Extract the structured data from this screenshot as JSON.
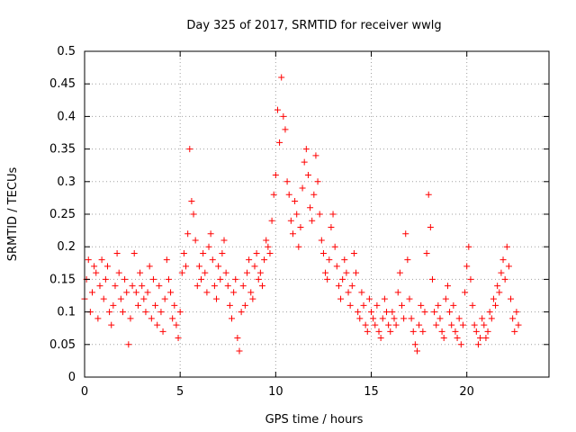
{
  "chart_data": {
    "type": "scatter",
    "title": "Day 325 of 2017, SRMTID for receiver wwlg",
    "xlabel": "GPS time / hours",
    "ylabel": "SRMTID / TECUs",
    "xlim": [
      0,
      24.3
    ],
    "ylim": [
      0,
      0.5
    ],
    "xticks": [
      "0",
      "5",
      "10",
      "15",
      "20"
    ],
    "xtick_values": [
      0,
      5,
      10,
      15,
      20
    ],
    "yticks": [
      "0",
      "0.05",
      "0.1",
      "0.15",
      "0.2",
      "0.25",
      "0.3",
      "0.35",
      "0.4",
      "0.45",
      "0.5"
    ],
    "ytick_values": [
      0,
      0.05,
      0.1,
      0.15,
      0.2,
      0.25,
      0.3,
      0.35,
      0.4,
      0.45,
      0.5
    ],
    "grid": true,
    "marker": "+",
    "color": "#ff0000",
    "series": [
      {
        "name": "SRMTID",
        "x": [
          0.0,
          0.1,
          0.2,
          0.3,
          0.4,
          0.5,
          0.6,
          0.7,
          0.8,
          0.9,
          1.0,
          1.1,
          1.2,
          1.3,
          1.4,
          1.5,
          1.6,
          1.7,
          1.8,
          1.9,
          2.0,
          2.1,
          2.2,
          2.3,
          2.4,
          2.5,
          2.6,
          2.7,
          2.8,
          2.9,
          3.0,
          3.1,
          3.2,
          3.3,
          3.4,
          3.5,
          3.6,
          3.7,
          3.8,
          3.9,
          4.0,
          4.1,
          4.2,
          4.3,
          4.4,
          4.5,
          4.6,
          4.7,
          4.8,
          4.9,
          5.0,
          5.1,
          5.2,
          5.3,
          5.4,
          5.5,
          5.6,
          5.7,
          5.8,
          5.9,
          6.0,
          6.1,
          6.2,
          6.3,
          6.4,
          6.5,
          6.6,
          6.7,
          6.8,
          6.9,
          7.0,
          7.1,
          7.2,
          7.3,
          7.4,
          7.5,
          7.6,
          7.7,
          7.8,
          7.9,
          8.0,
          8.1,
          8.2,
          8.3,
          8.4,
          8.5,
          8.6,
          8.7,
          8.8,
          8.9,
          9.0,
          9.1,
          9.2,
          9.3,
          9.4,
          9.5,
          9.6,
          9.7,
          9.8,
          9.9,
          10.0,
          10.1,
          10.2,
          10.3,
          10.4,
          10.5,
          10.6,
          10.7,
          10.8,
          10.9,
          11.0,
          11.1,
          11.2,
          11.3,
          11.4,
          11.5,
          11.6,
          11.7,
          11.8,
          11.9,
          12.0,
          12.1,
          12.2,
          12.3,
          12.4,
          12.5,
          12.6,
          12.7,
          12.8,
          12.9,
          13.0,
          13.1,
          13.2,
          13.3,
          13.4,
          13.5,
          13.6,
          13.7,
          13.8,
          13.9,
          14.0,
          14.1,
          14.2,
          14.3,
          14.4,
          14.5,
          14.6,
          14.7,
          14.8,
          14.9,
          15.0,
          15.1,
          15.2,
          15.3,
          15.4,
          15.5,
          15.6,
          15.7,
          15.8,
          15.9,
          16.0,
          16.1,
          16.2,
          16.3,
          16.4,
          16.5,
          16.6,
          16.7,
          16.8,
          16.9,
          17.0,
          17.1,
          17.2,
          17.3,
          17.4,
          17.5,
          17.6,
          17.7,
          17.8,
          17.9,
          18.0,
          18.1,
          18.2,
          18.3,
          18.4,
          18.5,
          18.6,
          18.7,
          18.8,
          18.9,
          19.0,
          19.1,
          19.2,
          19.3,
          19.4,
          19.5,
          19.6,
          19.7,
          19.8,
          19.9,
          20.0,
          20.1,
          20.2,
          20.3,
          20.4,
          20.5,
          20.6,
          20.7,
          20.8,
          20.9,
          21.0,
          21.1,
          21.2,
          21.3,
          21.4,
          21.5,
          21.6,
          21.7,
          21.8,
          21.9,
          22.0,
          22.1,
          22.2,
          22.3,
          22.4,
          22.5,
          22.6,
          22.7
        ],
        "y": [
          0.12,
          0.15,
          0.18,
          0.1,
          0.13,
          0.17,
          0.16,
          0.09,
          0.14,
          0.18,
          0.12,
          0.15,
          0.17,
          0.1,
          0.08,
          0.11,
          0.14,
          0.19,
          0.16,
          0.12,
          0.1,
          0.15,
          0.13,
          0.05,
          0.09,
          0.14,
          0.19,
          0.13,
          0.11,
          0.16,
          0.14,
          0.12,
          0.1,
          0.13,
          0.17,
          0.09,
          0.15,
          0.11,
          0.08,
          0.14,
          0.1,
          0.07,
          0.12,
          0.18,
          0.15,
          0.13,
          0.09,
          0.11,
          0.08,
          0.06,
          0.1,
          0.16,
          0.19,
          0.17,
          0.22,
          0.35,
          0.27,
          0.25,
          0.21,
          0.14,
          0.17,
          0.15,
          0.19,
          0.16,
          0.13,
          0.2,
          0.22,
          0.18,
          0.14,
          0.12,
          0.17,
          0.15,
          0.19,
          0.21,
          0.16,
          0.14,
          0.11,
          0.09,
          0.13,
          0.15,
          0.06,
          0.04,
          0.1,
          0.14,
          0.11,
          0.16,
          0.18,
          0.13,
          0.12,
          0.17,
          0.19,
          0.15,
          0.16,
          0.14,
          0.18,
          0.21,
          0.2,
          0.19,
          0.24,
          0.28,
          0.31,
          0.41,
          0.36,
          0.46,
          0.4,
          0.38,
          0.3,
          0.28,
          0.24,
          0.22,
          0.27,
          0.25,
          0.2,
          0.23,
          0.29,
          0.33,
          0.35,
          0.31,
          0.26,
          0.24,
          0.28,
          0.34,
          0.3,
          0.25,
          0.21,
          0.19,
          0.16,
          0.15,
          0.18,
          0.23,
          0.25,
          0.2,
          0.17,
          0.14,
          0.12,
          0.15,
          0.18,
          0.16,
          0.13,
          0.11,
          0.14,
          0.19,
          0.16,
          0.1,
          0.09,
          0.13,
          0.11,
          0.08,
          0.07,
          0.12,
          0.1,
          0.09,
          0.08,
          0.11,
          0.07,
          0.06,
          0.09,
          0.12,
          0.1,
          0.08,
          0.07,
          0.1,
          0.09,
          0.08,
          0.13,
          0.16,
          0.11,
          0.09,
          0.22,
          0.18,
          0.12,
          0.09,
          0.07,
          0.05,
          0.04,
          0.08,
          0.11,
          0.07,
          0.1,
          0.19,
          0.28,
          0.23,
          0.15,
          0.1,
          0.08,
          0.11,
          0.09,
          0.07,
          0.06,
          0.12,
          0.14,
          0.1,
          0.08,
          0.11,
          0.07,
          0.06,
          0.09,
          0.05,
          0.08,
          0.13,
          0.17,
          0.2,
          0.15,
          0.11,
          0.08,
          0.07,
          0.05,
          0.06,
          0.09,
          0.08,
          0.06,
          0.07,
          0.1,
          0.09,
          0.12,
          0.11,
          0.14,
          0.13,
          0.16,
          0.18,
          0.15,
          0.2,
          0.17,
          0.12,
          0.09,
          0.07,
          0.1,
          0.08
        ]
      }
    ]
  }
}
